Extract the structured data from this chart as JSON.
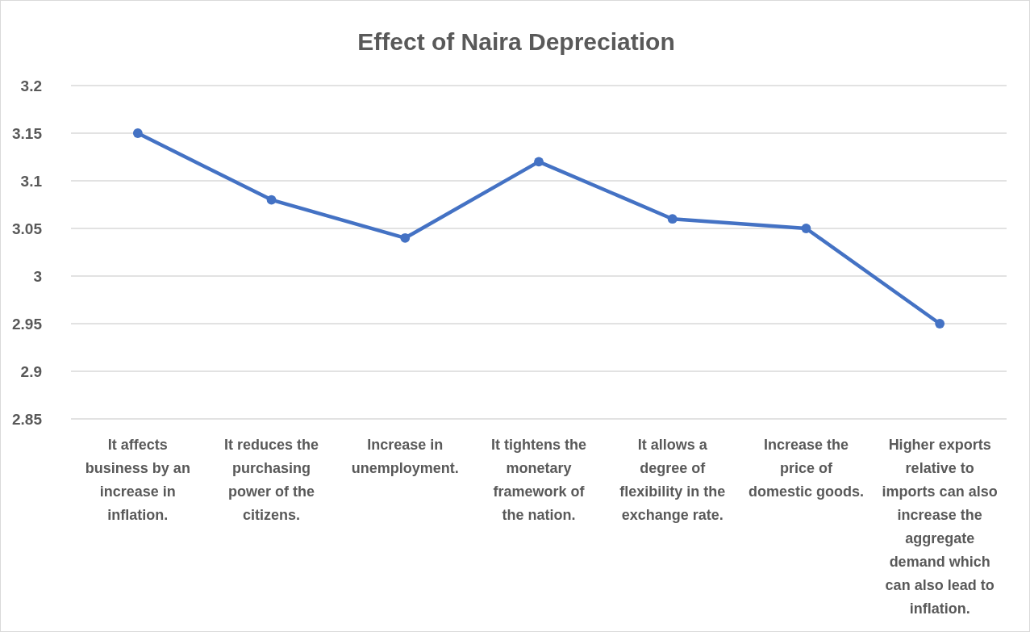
{
  "chart_data": {
    "type": "line",
    "title": "Effect of Naira Depreciation",
    "categories": [
      "It affects business by an increase in inflation.",
      "It reduces the purchasing power of the citizens.",
      "Increase in unemployment.",
      "It tightens the monetary framework of the nation.",
      "It allows a degree of flexibility in the exchange rate.",
      "Increase the price of domestic goods.",
      "Higher exports relative to imports can also increase the aggregate demand which can also lead to inflation."
    ],
    "series": [
      {
        "color": "#4472c4",
        "values": [
          3.15,
          3.08,
          3.04,
          3.12,
          3.06,
          3.05,
          2.95
        ]
      }
    ],
    "ylim": [
      2.85,
      3.2
    ],
    "yticks": [
      {
        "value": 2.85,
        "label": "2.85"
      },
      {
        "value": 2.9,
        "label": "2.9"
      },
      {
        "value": 2.95,
        "label": "2.95"
      },
      {
        "value": 3,
        "label": "3"
      },
      {
        "value": 3.05,
        "label": "3.05"
      },
      {
        "value": 3.1,
        "label": "3.1"
      },
      {
        "value": 3.15,
        "label": "3.15"
      },
      {
        "value": 3.2,
        "label": "3.2"
      }
    ],
    "grid": "y",
    "marker": "circle",
    "line_style": "solid"
  }
}
